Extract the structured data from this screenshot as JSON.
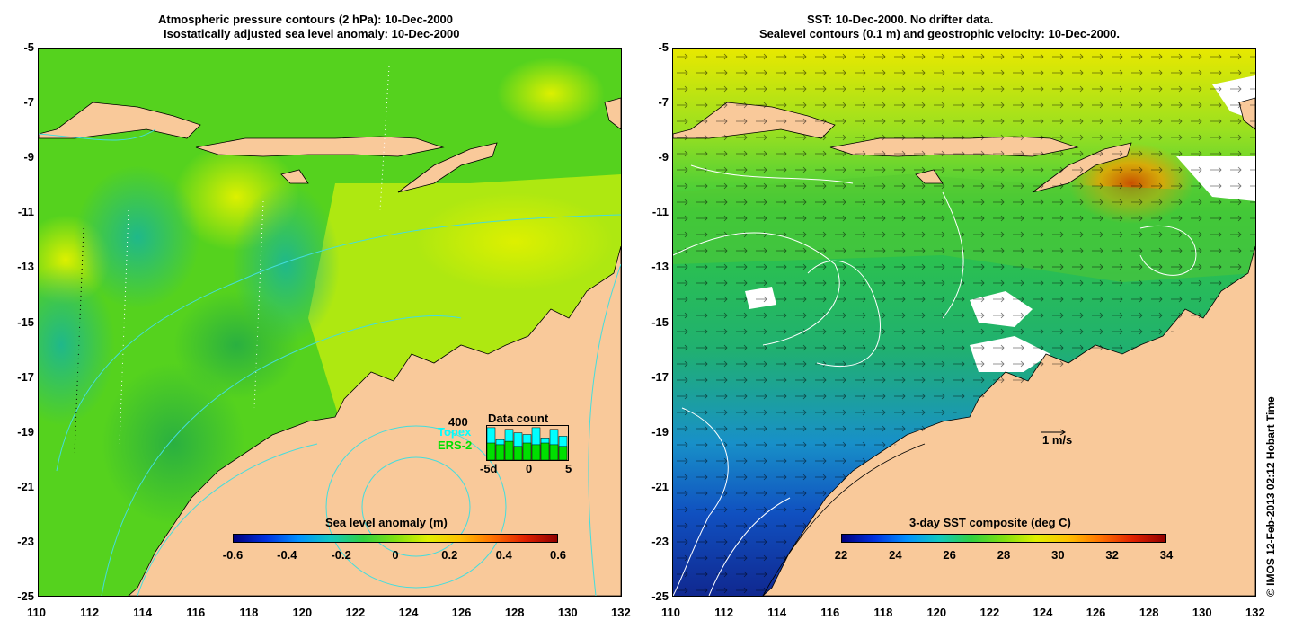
{
  "left_panel": {
    "title_line1": "Atmospheric pressure contours (2 hPa): 10-Dec-2000",
    "title_line2": "Isostatically adjusted sea level anomaly: 10-Dec-2000",
    "colorbar_title": "Sea level anomaly (m)",
    "colorbar_ticks": [
      "-0.6",
      "-0.4",
      "-0.2",
      "0",
      "0.2",
      "0.4",
      "0.6"
    ],
    "data_count": {
      "title": "Data count",
      "max_label": "400",
      "series1": "Topex",
      "series2": "ERS-2",
      "x_ticks": [
        "-5d",
        "0",
        "5"
      ],
      "topex_color": "#00ffff",
      "ers2_color": "#00e000",
      "topex_values": [
        0.95,
        0.6,
        0.9,
        0.8,
        0.75,
        0.95,
        0.65,
        0.9,
        0.7
      ],
      "ers2_values": [
        0.5,
        0.45,
        0.55,
        0.4,
        0.5,
        0.45,
        0.5,
        0.45,
        0.4
      ]
    }
  },
  "right_panel": {
    "title_line1": "SST: 10-Dec-2000. No drifter data.",
    "title_line2": "Sealevel contours (0.1 m) and geostrophic velocity: 10-Dec-2000.",
    "colorbar_title": "3-day SST composite (deg C)",
    "colorbar_ticks": [
      "22",
      "24",
      "26",
      "28",
      "30",
      "32",
      "34"
    ],
    "velocity_scale_label": "1 m/s"
  },
  "axes": {
    "x_ticks": [
      "110",
      "112",
      "114",
      "116",
      "118",
      "120",
      "122",
      "124",
      "126",
      "128",
      "130",
      "132"
    ],
    "y_ticks": [
      "-5",
      "-7",
      "-9",
      "-11",
      "-13",
      "-15",
      "-17",
      "-19",
      "-21",
      "-23",
      "-25"
    ],
    "lon_range": [
      110,
      132
    ],
    "lat_range": [
      -25,
      -5
    ]
  },
  "credit": "© IMOS 12-Feb-2013 02:12 Hobart Time",
  "colors": {
    "land": "#f9c99a",
    "ocean_left": "#44cc22",
    "ocean_right": "#33bb44",
    "contour_cyan": "#44dddd"
  }
}
